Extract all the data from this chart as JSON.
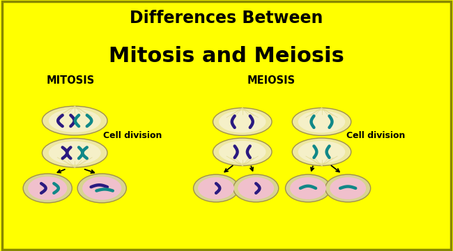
{
  "title_line1": "Differences Between",
  "title_line2": "Mitosis and Meiosis",
  "title_bg": "#FFFF00",
  "content_bg": "#C8C8C8",
  "label_mitosis": "MITOSIS",
  "label_meiosis": "MEIOSIS",
  "cell_division_text": "Cell division",
  "cell_border_color": "#A09050",
  "cell_fill_color": "#EEE8A0",
  "cell_inner_color": "#F5F0C8",
  "daughter_outer_color": "#D8D490",
  "daughter_ring_color": "#E8E498",
  "daughter_inner_color": "#F0C0CC",
  "chrom_purple": "#2A1A80",
  "chrom_teal": "#108888",
  "spindle_color": "#E0D890",
  "title1_fontsize": 17,
  "title2_fontsize": 22,
  "label_fontsize": 10.5,
  "celldiv_fontsize": 9
}
